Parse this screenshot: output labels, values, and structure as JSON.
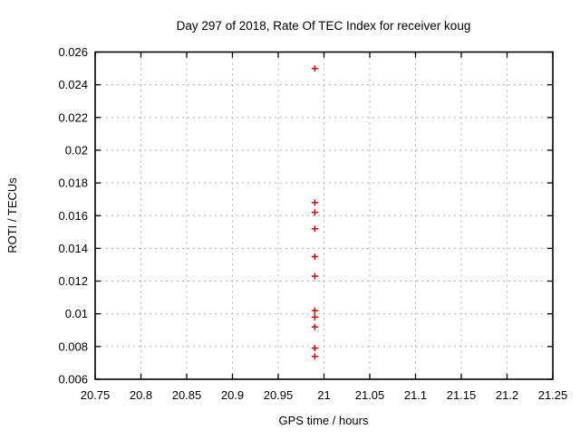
{
  "page": {
    "background_color": "#ffffff"
  },
  "chart_data": {
    "type": "scatter",
    "title": "Day 297 of 2018, Rate Of TEC Index for receiver koug",
    "xlabel": "GPS time / hours",
    "ylabel": "ROTI / TECUs",
    "xlim": [
      20.75,
      21.25
    ],
    "ylim": [
      0.006,
      0.026
    ],
    "grid": true,
    "legend_position": "none",
    "marker": "plus",
    "marker_color": "#dd0000",
    "grid_color": "#b0b0b0",
    "border_color": "#000000",
    "x_ticks": [
      {
        "value": 20.75,
        "label": "20.75"
      },
      {
        "value": 20.8,
        "label": "20.8"
      },
      {
        "value": 20.85,
        "label": "20.85"
      },
      {
        "value": 20.9,
        "label": "20.9"
      },
      {
        "value": 20.95,
        "label": "20.95"
      },
      {
        "value": 21.0,
        "label": "21"
      },
      {
        "value": 21.05,
        "label": "21.05"
      },
      {
        "value": 21.1,
        "label": "21.1"
      },
      {
        "value": 21.15,
        "label": "21.15"
      },
      {
        "value": 21.2,
        "label": "21.2"
      },
      {
        "value": 21.25,
        "label": "21.25"
      }
    ],
    "y_ticks": [
      {
        "value": 0.006,
        "label": "0.006"
      },
      {
        "value": 0.008,
        "label": "0.008"
      },
      {
        "value": 0.01,
        "label": "0.01"
      },
      {
        "value": 0.012,
        "label": "0.012"
      },
      {
        "value": 0.014,
        "label": "0.014"
      },
      {
        "value": 0.016,
        "label": "0.016"
      },
      {
        "value": 0.018,
        "label": "0.018"
      },
      {
        "value": 0.02,
        "label": "0.02"
      },
      {
        "value": 0.022,
        "label": "0.022"
      },
      {
        "value": 0.024,
        "label": "0.024"
      },
      {
        "value": 0.026,
        "label": "0.026"
      }
    ],
    "series": [
      {
        "name": "ROTI",
        "points": [
          {
            "x": 20.99,
            "y": 0.025
          },
          {
            "x": 20.99,
            "y": 0.0168
          },
          {
            "x": 20.99,
            "y": 0.0162
          },
          {
            "x": 20.99,
            "y": 0.0152
          },
          {
            "x": 20.99,
            "y": 0.0135
          },
          {
            "x": 20.99,
            "y": 0.0123
          },
          {
            "x": 20.99,
            "y": 0.0102
          },
          {
            "x": 20.99,
            "y": 0.0098
          },
          {
            "x": 20.99,
            "y": 0.0092
          },
          {
            "x": 20.99,
            "y": 0.0079
          },
          {
            "x": 20.99,
            "y": 0.0074
          }
        ]
      }
    ]
  }
}
